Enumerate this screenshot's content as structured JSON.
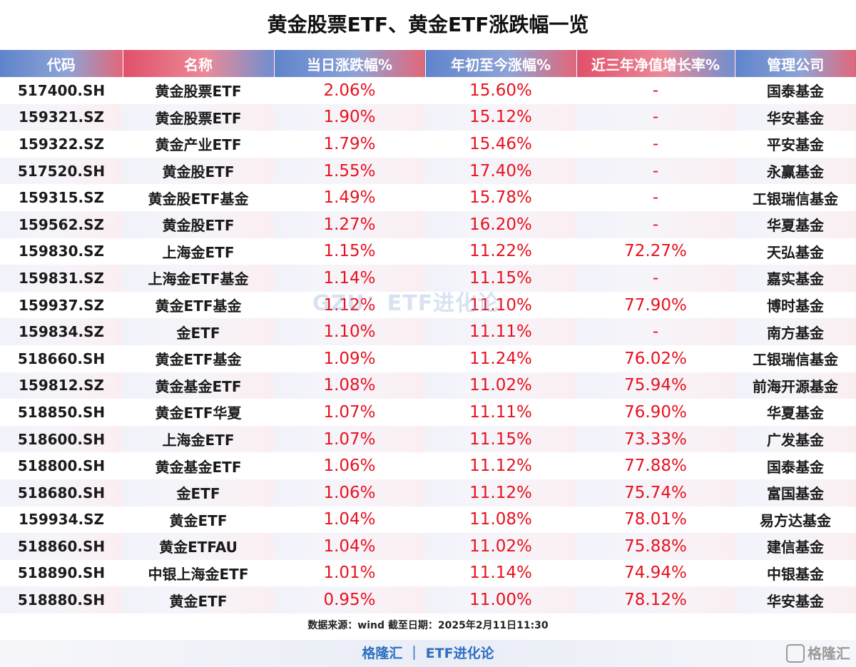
{
  "title": "黄金股票ETF、黄金ETF涨跌幅一览",
  "columns": [
    "代码",
    "名称",
    "当日涨跌幅%",
    "年初至今涨幅%",
    "近三年净值增长率%",
    "管理公司"
  ],
  "rows": [
    {
      "code": "517400.SH",
      "name": "黄金股票ETF",
      "daily": "2.06%",
      "ytd": "15.60%",
      "three_year": "-",
      "manager": "国泰基金"
    },
    {
      "code": "159321.SZ",
      "name": "黄金股票ETF",
      "daily": "1.90%",
      "ytd": "15.12%",
      "three_year": "-",
      "manager": "华安基金"
    },
    {
      "code": "159322.SZ",
      "name": "黄金产业ETF",
      "daily": "1.79%",
      "ytd": "15.46%",
      "three_year": "-",
      "manager": "平安基金"
    },
    {
      "code": "517520.SH",
      "name": "黄金股ETF",
      "daily": "1.55%",
      "ytd": "17.40%",
      "three_year": "-",
      "manager": "永赢基金"
    },
    {
      "code": "159315.SZ",
      "name": "黄金股ETF基金",
      "daily": "1.49%",
      "ytd": "15.78%",
      "three_year": "-",
      "manager": "工银瑞信基金"
    },
    {
      "code": "159562.SZ",
      "name": "黄金股ETF",
      "daily": "1.27%",
      "ytd": "16.20%",
      "three_year": "-",
      "manager": "华夏基金"
    },
    {
      "code": "159830.SZ",
      "name": "上海金ETF",
      "daily": "1.15%",
      "ytd": "11.22%",
      "three_year": "72.27%",
      "manager": "天弘基金"
    },
    {
      "code": "159831.SZ",
      "name": "上海金ETF基金",
      "daily": "1.14%",
      "ytd": "11.15%",
      "three_year": "-",
      "manager": "嘉实基金"
    },
    {
      "code": "159937.SZ",
      "name": "黄金ETF基金",
      "daily": "1.12%",
      "ytd": "11.10%",
      "three_year": "77.90%",
      "manager": "博时基金"
    },
    {
      "code": "159834.SZ",
      "name": "金ETF",
      "daily": "1.10%",
      "ytd": "11.11%",
      "three_year": "-",
      "manager": "南方基金"
    },
    {
      "code": "518660.SH",
      "name": "黄金ETF基金",
      "daily": "1.09%",
      "ytd": "11.24%",
      "three_year": "76.02%",
      "manager": "工银瑞信基金"
    },
    {
      "code": "159812.SZ",
      "name": "黄金基金ETF",
      "daily": "1.08%",
      "ytd": "11.02%",
      "three_year": "75.94%",
      "manager": "前海开源基金"
    },
    {
      "code": "518850.SH",
      "name": "黄金ETF华夏",
      "daily": "1.07%",
      "ytd": "11.11%",
      "three_year": "76.90%",
      "manager": "华夏基金"
    },
    {
      "code": "518600.SH",
      "name": "上海金ETF",
      "daily": "1.07%",
      "ytd": "11.15%",
      "three_year": "73.33%",
      "manager": "广发基金"
    },
    {
      "code": "518800.SH",
      "name": "黄金基金ETF",
      "daily": "1.06%",
      "ytd": "11.12%",
      "three_year": "77.88%",
      "manager": "国泰基金"
    },
    {
      "code": "518680.SH",
      "name": "金ETF",
      "daily": "1.06%",
      "ytd": "11.12%",
      "three_year": "75.74%",
      "manager": "富国基金"
    },
    {
      "code": "159934.SZ",
      "name": "黄金ETF",
      "daily": "1.04%",
      "ytd": "11.08%",
      "three_year": "78.01%",
      "manager": "易方达基金"
    },
    {
      "code": "518860.SH",
      "name": "黄金ETFAU",
      "daily": "1.04%",
      "ytd": "11.02%",
      "three_year": "75.88%",
      "manager": "建信基金"
    },
    {
      "code": "518890.SH",
      "name": "中银上海金ETF",
      "daily": "1.01%",
      "ytd": "11.14%",
      "three_year": "74.94%",
      "manager": "中银基金"
    },
    {
      "code": "518880.SH",
      "name": "黄金ETF",
      "daily": "0.95%",
      "ytd": "11.00%",
      "three_year": "78.12%",
      "manager": "华安基金"
    }
  ],
  "source": "数据来源：wind  截至日期：2025年2月11日11:30",
  "footer": "格隆汇 ｜ ETF进化论",
  "watermark": "GZU：ETF进化论",
  "logo_text": "格隆汇",
  "colors": {
    "up": "#e8111f",
    "header_blue": "#5f84cc",
    "header_red": "#e0506a",
    "footer_text": "#2f6fc0"
  }
}
